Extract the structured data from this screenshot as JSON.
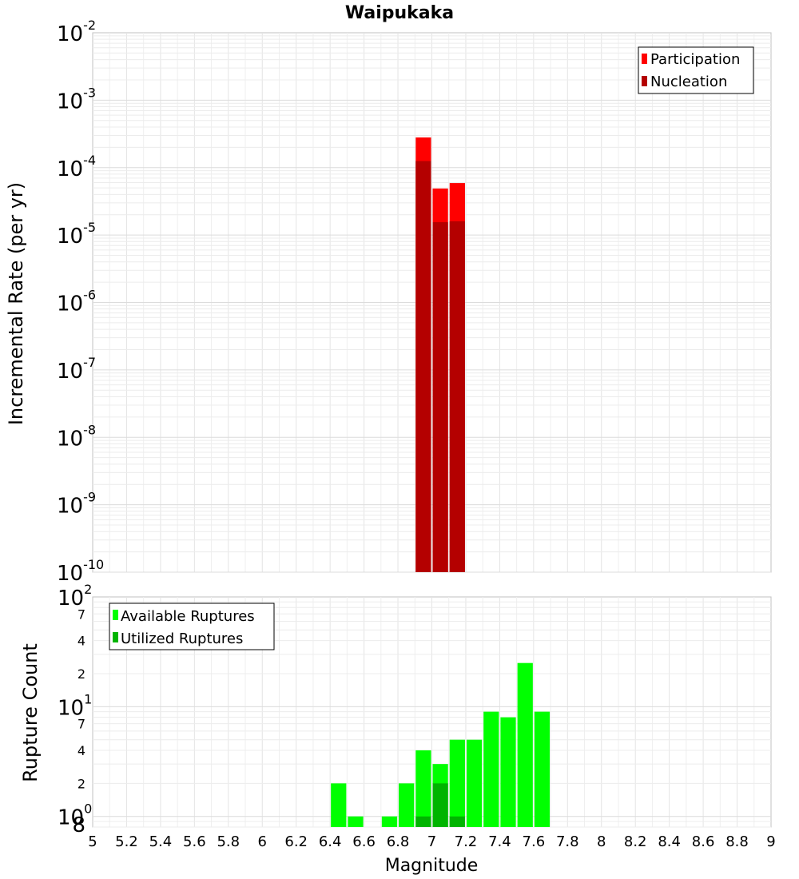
{
  "chart_data": [
    {
      "type": "bar",
      "title": "Waipukaka",
      "xlabel": "",
      "ylabel": "Incremental Rate (per yr)",
      "yscale": "log",
      "ylim": [
        1e-10,
        0.01
      ],
      "xlim": [
        5,
        9
      ],
      "grid": true,
      "legend_position": "top-right",
      "bin_width": 0.1,
      "x": [
        6.95,
        7.05,
        7.15
      ],
      "series": [
        {
          "name": "Participation",
          "color": "#ff0000",
          "values": [
            0.00028,
            4.9e-05,
            5.9e-05
          ]
        },
        {
          "name": "Nucleation",
          "color": "#b40000",
          "values": [
            0.000125,
            1.55e-05,
            1.6e-05
          ]
        }
      ],
      "y_ticks": [
        {
          "base": "10",
          "exp": "-2"
        },
        {
          "base": "10",
          "exp": "-3"
        },
        {
          "base": "10",
          "exp": "-4"
        },
        {
          "base": "10",
          "exp": "-5"
        },
        {
          "base": "10",
          "exp": "-6"
        },
        {
          "base": "10",
          "exp": "-7"
        },
        {
          "base": "10",
          "exp": "-8"
        },
        {
          "base": "10",
          "exp": "-9"
        },
        {
          "base": "10",
          "exp": "-10"
        }
      ]
    },
    {
      "type": "bar",
      "xlabel": "Magnitude",
      "ylabel": "Rupture Count",
      "yscale": "log",
      "ylim": [
        0.8,
        100
      ],
      "xlim": [
        5,
        9
      ],
      "grid": true,
      "legend_position": "top-left",
      "bin_width": 0.1,
      "x": [
        6.45,
        6.55,
        6.75,
        6.85,
        6.95,
        7.05,
        7.15,
        7.25,
        7.35,
        7.45,
        7.55,
        7.65
      ],
      "series": [
        {
          "name": "Available Ruptures",
          "color": "#00ff00",
          "values": [
            2,
            1,
            1,
            2,
            4,
            3,
            5,
            5,
            9,
            8,
            25,
            9
          ]
        },
        {
          "name": "Utilized Ruptures",
          "color": "#00b400",
          "x": [
            6.95,
            7.05,
            7.15
          ],
          "values": [
            1,
            2,
            1
          ]
        }
      ],
      "x_ticks": [
        "5",
        "5.2",
        "5.4",
        "5.6",
        "5.8",
        "6",
        "6.2",
        "6.4",
        "6.6",
        "6.8",
        "7",
        "7.2",
        "7.4",
        "7.6",
        "7.8",
        "8",
        "8.2",
        "8.4",
        "8.6",
        "8.8",
        "9"
      ],
      "y_major_ticks": [
        {
          "base": "10",
          "exp": "2",
          "value": 100
        },
        {
          "base": "10",
          "exp": "1",
          "value": 10
        },
        {
          "base": "10",
          "exp": "0",
          "value": 1
        }
      ],
      "y_minor_ticks": [
        {
          "label": "7",
          "value": 70
        },
        {
          "label": "4",
          "value": 40
        },
        {
          "label": "2",
          "value": 20
        },
        {
          "label": "7",
          "value": 7
        },
        {
          "label": "4",
          "value": 4
        },
        {
          "label": "2",
          "value": 2
        },
        {
          "label": "8",
          "value": 0.8
        }
      ]
    }
  ]
}
